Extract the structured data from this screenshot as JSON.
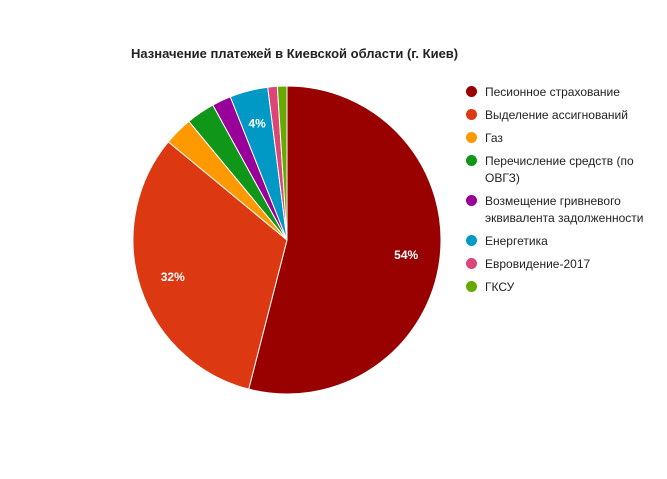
{
  "chart_data": {
    "type": "pie",
    "title": "Назначение платежей в Киевской области (г. Киев)",
    "legend_position": "right",
    "slices": [
      {
        "label": "Песионное страхование",
        "value": 54,
        "color": "#990000",
        "data_label": "54%"
      },
      {
        "label": "Выделение ассигнований",
        "value": 32,
        "color": "#dc3912",
        "data_label": "32%"
      },
      {
        "label": "Газ",
        "value": 3,
        "color": "#ff9900",
        "data_label": ""
      },
      {
        "label": "Перечисление средств (по ОВГЗ)",
        "value": 3,
        "color": "#109618",
        "data_label": ""
      },
      {
        "label": "Возмещение гривневого эквивалента задолженности",
        "value": 2,
        "color": "#990099",
        "data_label": ""
      },
      {
        "label": "Енергетика",
        "value": 4,
        "color": "#0099c6",
        "data_label": "4%"
      },
      {
        "label": "Евровидение-2017",
        "value": 1,
        "color": "#dd4477",
        "data_label": ""
      },
      {
        "label": "ГКСУ",
        "value": 1,
        "color": "#66aa00",
        "data_label": ""
      }
    ]
  }
}
